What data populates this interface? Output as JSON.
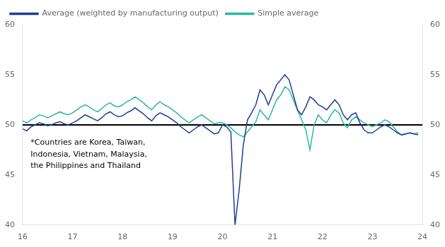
{
  "chart_data": {
    "type": "line",
    "annotation": "*Countries are Korea, Taiwan,\nIndonesia, Vietnam, Malaysia,\nthe Philippines and Thailand",
    "x": [
      16,
      16.0833333333,
      16.1666666667,
      16.25,
      16.3333333333,
      16.4166666667,
      16.5,
      16.5833333333,
      16.6666666667,
      16.75,
      16.8333333333,
      16.9166666667,
      17,
      17.0833333333,
      17.1666666667,
      17.25,
      17.3333333333,
      17.4166666667,
      17.5,
      17.5833333333,
      17.6666666667,
      17.75,
      17.8333333333,
      17.9166666667,
      18,
      18.0833333333,
      18.1666666667,
      18.25,
      18.3333333333,
      18.4166666667,
      18.5,
      18.5833333333,
      18.6666666667,
      18.75,
      18.8333333333,
      18.9166666667,
      19,
      19.0833333333,
      19.1666666667,
      19.25,
      19.3333333333,
      19.4166666667,
      19.5,
      19.5833333333,
      19.6666666667,
      19.75,
      19.8333333333,
      19.9166666667,
      20,
      20.0833333333,
      20.1666666667,
      20.25,
      20.3333333333,
      20.4166666667,
      20.5,
      20.5833333333,
      20.6666666667,
      20.75,
      20.8333333333,
      20.9166666667,
      21,
      21.0833333333,
      21.1666666667,
      21.25,
      21.3333333333,
      21.4166666667,
      21.5,
      21.5833333333,
      21.6666666667,
      21.75,
      21.8333333333,
      21.9166666667,
      22,
      22.0833333333,
      22.1666666667,
      22.25,
      22.3333333333,
      22.4166666667,
      22.5,
      22.5833333333,
      22.6666666667,
      22.75,
      22.8333333333,
      22.9166666667,
      23,
      23.0833333333,
      23.1666666667,
      23.25,
      23.3333333333,
      23.4166666667,
      23.5,
      23.5833333333,
      23.6666666667,
      23.75,
      23.8333333333,
      23.9166666667
    ],
    "series": [
      {
        "name": "Average (weighted by manufacturing output)",
        "color": "#1f3d99",
        "values": [
          49.6,
          49.4,
          49.8,
          50.0,
          50.2,
          50.1,
          49.9,
          50.0,
          50.2,
          50.3,
          50.1,
          50.0,
          50.2,
          50.4,
          50.7,
          51.0,
          50.8,
          50.6,
          50.4,
          50.7,
          51.1,
          51.3,
          51.0,
          50.8,
          50.9,
          51.2,
          51.4,
          51.7,
          51.4,
          51.1,
          50.7,
          50.4,
          50.9,
          51.2,
          51.0,
          50.8,
          50.5,
          50.2,
          49.8,
          49.5,
          49.2,
          49.5,
          49.8,
          50.0,
          49.7,
          49.4,
          49.1,
          49.2,
          50.0,
          49.8,
          49.3,
          40.0,
          43.5,
          48.0,
          50.5,
          51.2,
          52.0,
          53.5,
          53.0,
          52.0,
          53.0,
          54.0,
          54.5,
          55.0,
          54.5,
          53.0,
          51.5,
          51.0,
          51.8,
          52.8,
          52.5,
          52.0,
          51.8,
          51.5,
          52.0,
          52.5,
          52.0,
          51.0,
          50.5,
          51.0,
          51.2,
          50.2,
          49.5,
          49.2,
          49.2,
          49.5,
          49.8,
          50.0,
          49.8,
          49.5,
          49.2,
          49.0,
          49.1,
          49.2,
          49.1,
          49.0
        ]
      },
      {
        "name": "Simple average",
        "color": "#2db8a0",
        "values": [
          50.4,
          50.2,
          50.5,
          50.7,
          51.0,
          50.9,
          50.7,
          50.9,
          51.1,
          51.3,
          51.1,
          51.0,
          51.2,
          51.5,
          51.8,
          52.0,
          51.8,
          51.5,
          51.3,
          51.6,
          52.0,
          52.2,
          51.9,
          51.8,
          52.0,
          52.3,
          52.5,
          52.8,
          52.5,
          52.2,
          51.8,
          51.5,
          52.0,
          52.3,
          52.0,
          51.8,
          51.5,
          51.2,
          50.8,
          50.5,
          50.2,
          50.5,
          50.8,
          51.0,
          50.7,
          50.4,
          50.1,
          50.2,
          50.2,
          50.0,
          49.7,
          49.3,
          49.0,
          48.8,
          49.3,
          49.8,
          50.3,
          51.5,
          51.0,
          50.5,
          51.5,
          52.5,
          53.0,
          53.8,
          53.5,
          52.5,
          51.5,
          50.5,
          49.5,
          47.5,
          50.0,
          51.0,
          50.5,
          50.2,
          51.0,
          51.5,
          51.2,
          50.2,
          49.7,
          50.5,
          50.8,
          50.5,
          50.2,
          50.0,
          49.8,
          50.0,
          50.2,
          50.5,
          50.3,
          49.8,
          49.3,
          49.0,
          49.1,
          49.2,
          49.1,
          49.2
        ]
      }
    ],
    "reference_line": {
      "y": 50,
      "color": "#000000"
    },
    "xlim": [
      16,
      24
    ],
    "xticks": [
      16,
      17,
      18,
      19,
      20,
      21,
      22,
      23,
      24
    ],
    "ylim": [
      40,
      60
    ],
    "yticks": [
      40,
      45,
      50,
      55,
      60
    ],
    "y2lim": [
      40,
      60
    ],
    "y2ticks": [
      40,
      45,
      50,
      55,
      60
    ],
    "grid": false,
    "legend": "top"
  }
}
